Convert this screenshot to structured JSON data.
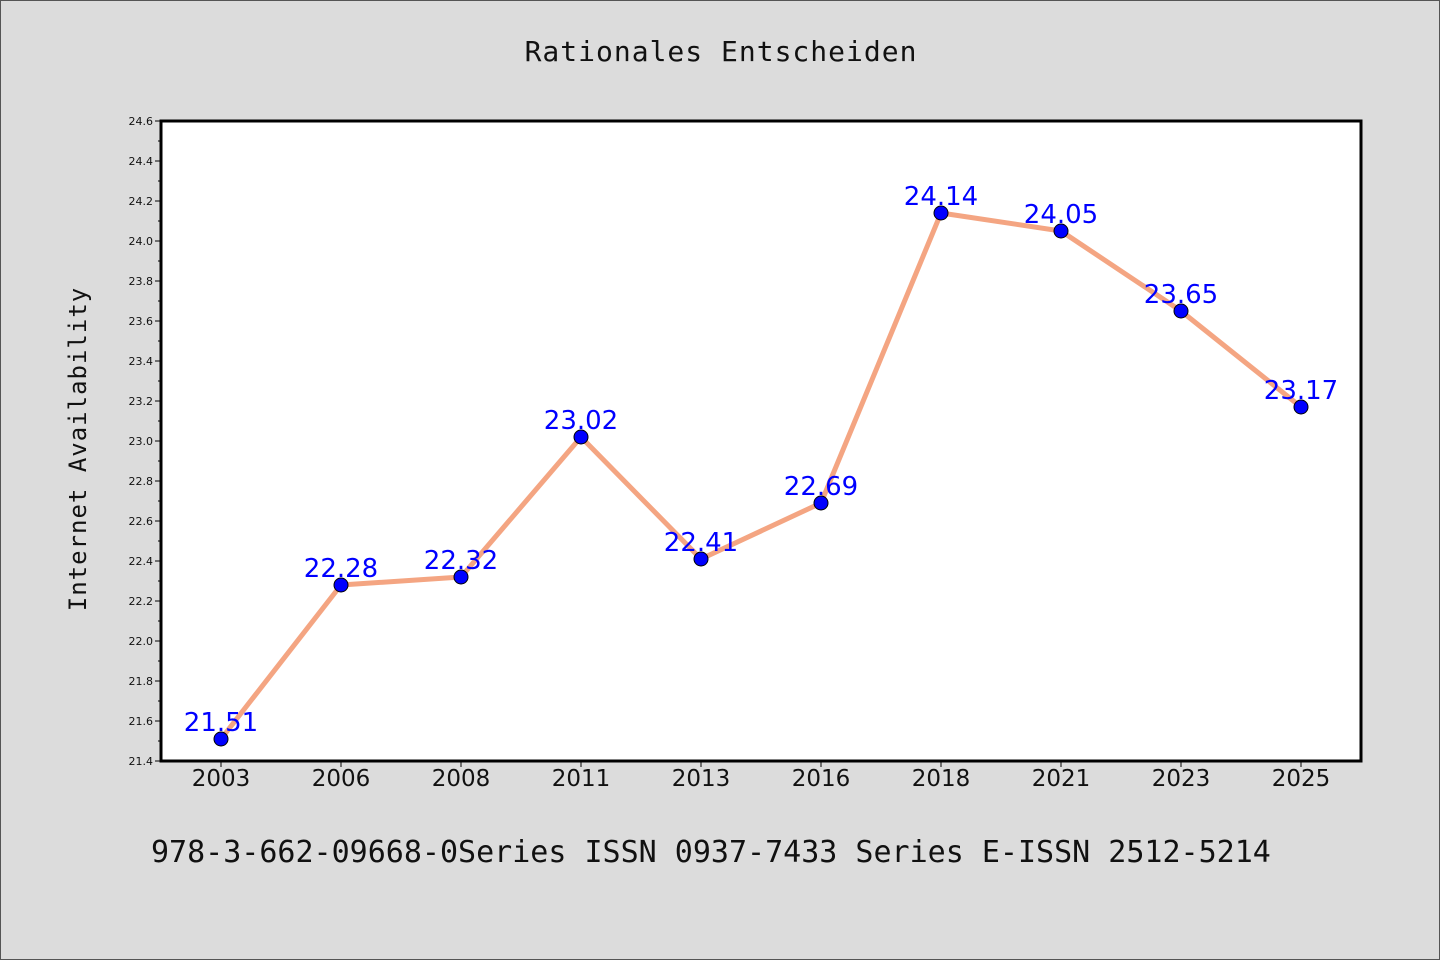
{
  "chart_data": {
    "type": "line",
    "title": "Rationales Entscheiden",
    "xlabel": "",
    "ylabel": "Internet Availability",
    "categories": [
      "2003",
      "2006",
      "2008",
      "2011",
      "2013",
      "2016",
      "2018",
      "2021",
      "2023",
      "2025"
    ],
    "values": [
      21.51,
      22.28,
      22.32,
      23.02,
      22.41,
      22.69,
      24.14,
      24.05,
      23.65,
      23.17
    ],
    "data_labels": [
      "21.51",
      "22.28",
      "22.32",
      "23.02",
      "22.41",
      "22.69",
      "24.14",
      "24.05",
      "23.65",
      "23.17"
    ],
    "ylim": [
      21.4,
      24.6
    ],
    "yticks": [
      "21.4",
      "21.6",
      "21.8",
      "22.0",
      "22.2",
      "22.4",
      "22.6",
      "22.8",
      "23.0",
      "23.2",
      "23.4",
      "23.6",
      "23.8",
      "24.0",
      "24.2",
      "24.4",
      "24.6"
    ],
    "grid": false,
    "line_color": "#f4a582",
    "marker_color": "#0000ff",
    "label_color": "#0000ff"
  },
  "footer": {
    "text": "978-3-662-09668-0Series ISSN 0937-7433 Series E-ISSN 2512-5214"
  }
}
